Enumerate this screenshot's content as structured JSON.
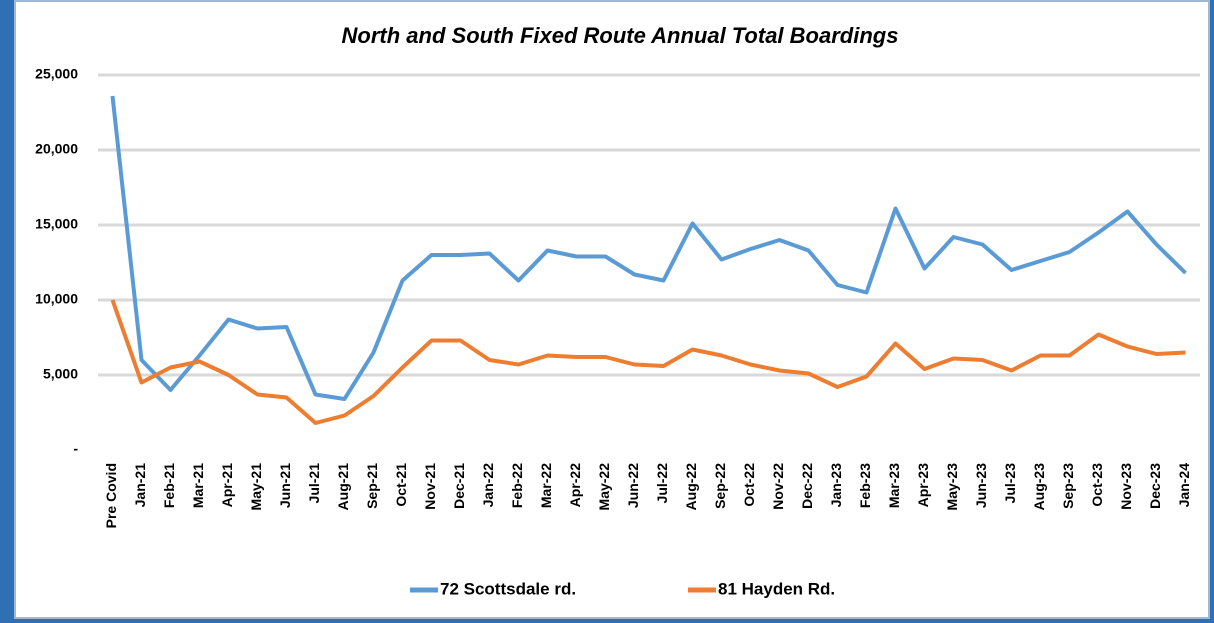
{
  "chart_data": {
    "type": "line",
    "title": "North and South Fixed Route Annual Total Boardings",
    "categories": [
      "Pre Covid",
      "Jan-21",
      "Feb-21",
      "Mar-21",
      "Apr-21",
      "May-21",
      "Jun-21",
      "Jul-21",
      "Aug-21",
      "Sep-21",
      "Oct-21",
      "Nov-21",
      "Dec-21",
      "Jan-22",
      "Feb-22",
      "Mar-22",
      "Apr-22",
      "May-22",
      "Jun-22",
      "Jul-22",
      "Aug-22",
      "Sep-22",
      "Oct-22",
      "Nov-22",
      "Dec-22",
      "Jan-23",
      "Feb-23",
      "Mar-23",
      "Apr-23",
      "May-23",
      "Jun-23",
      "Jul-23",
      "Aug-23",
      "Sep-23",
      "Oct-23",
      "Nov-23",
      "Dec-23",
      "Jan-24"
    ],
    "series": [
      {
        "name": "72 Scottsdale rd.",
        "color": "#5b9bd5",
        "values": [
          23600,
          6000,
          4000,
          6300,
          8700,
          8100,
          8200,
          3700,
          3400,
          6500,
          11300,
          13000,
          13000,
          13100,
          11300,
          13300,
          12900,
          12900,
          11700,
          11300,
          15100,
          12700,
          13400,
          14000,
          13300,
          11000,
          10500,
          16100,
          12100,
          14200,
          13700,
          12000,
          12600,
          13200,
          14500,
          15900,
          13700,
          11800
        ]
      },
      {
        "name": "81 Hayden Rd.",
        "color": "#ed7d31",
        "values": [
          10000,
          4500,
          5500,
          5900,
          5000,
          3700,
          3500,
          1800,
          2300,
          3600,
          5500,
          7300,
          7300,
          6000,
          5700,
          6300,
          6200,
          6200,
          5700,
          5600,
          6700,
          6300,
          5700,
          5300,
          5100,
          4200,
          4900,
          7100,
          5400,
          6100,
          6000,
          5300,
          6300,
          6300,
          7700,
          6900,
          6400,
          6500
        ]
      }
    ],
    "ylim": [
      0,
      25000
    ],
    "yticks": [
      {
        "value": 0,
        "label": "-"
      },
      {
        "value": 5000,
        "label": "5,000"
      },
      {
        "value": 10000,
        "label": "10,000"
      },
      {
        "value": 15000,
        "label": "15,000"
      },
      {
        "value": 20000,
        "label": "20,000"
      },
      {
        "value": 25000,
        "label": "25,000"
      }
    ],
    "grid": true
  }
}
